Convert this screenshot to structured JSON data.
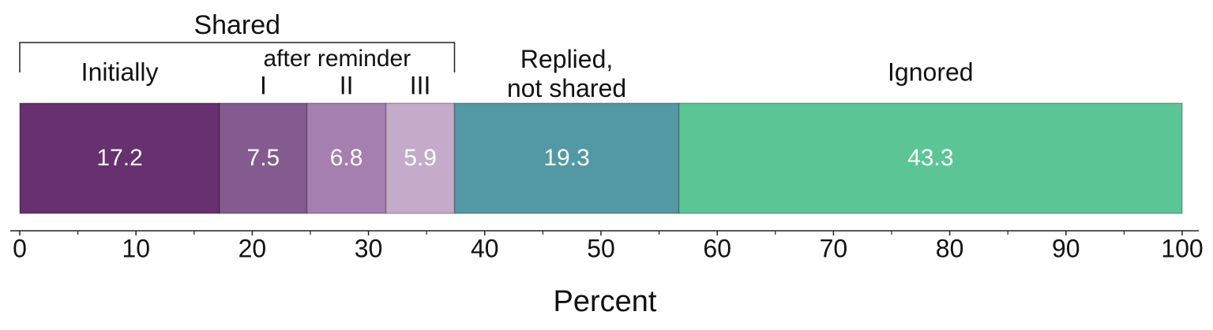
{
  "chart_data": {
    "type": "stacked-bar",
    "orientation": "horizontal",
    "xlabel": "Percent",
    "xlim": [
      0,
      100
    ],
    "xticks": [
      0,
      10,
      20,
      30,
      40,
      50,
      60,
      70,
      80,
      90,
      100
    ],
    "minor_xticks": [
      5,
      15,
      25,
      35,
      45,
      55,
      65,
      75,
      85,
      95
    ],
    "series": [
      {
        "name": "Initially",
        "color": "#67306f",
        "values": [
          17.2
        ]
      },
      {
        "name": "I",
        "color": "#845b8f",
        "values": [
          7.5
        ]
      },
      {
        "name": "II",
        "color": "#a47fb0",
        "values": [
          6.8
        ]
      },
      {
        "name": "III",
        "color": "#c4abc9",
        "values": [
          5.9
        ]
      },
      {
        "name": "Replied,\nnot shared",
        "color": "#5399a5",
        "values": [
          19.3
        ]
      },
      {
        "name": "Ignored",
        "color": "#5cc595",
        "values": [
          43.3
        ]
      }
    ],
    "groups": [
      {
        "label": "Shared",
        "members": [
          "Initially",
          "I",
          "II",
          "III"
        ],
        "bracket": true
      },
      {
        "label": "after reminder",
        "members": [
          "I",
          "II",
          "III"
        ],
        "bracket": false
      }
    ]
  }
}
